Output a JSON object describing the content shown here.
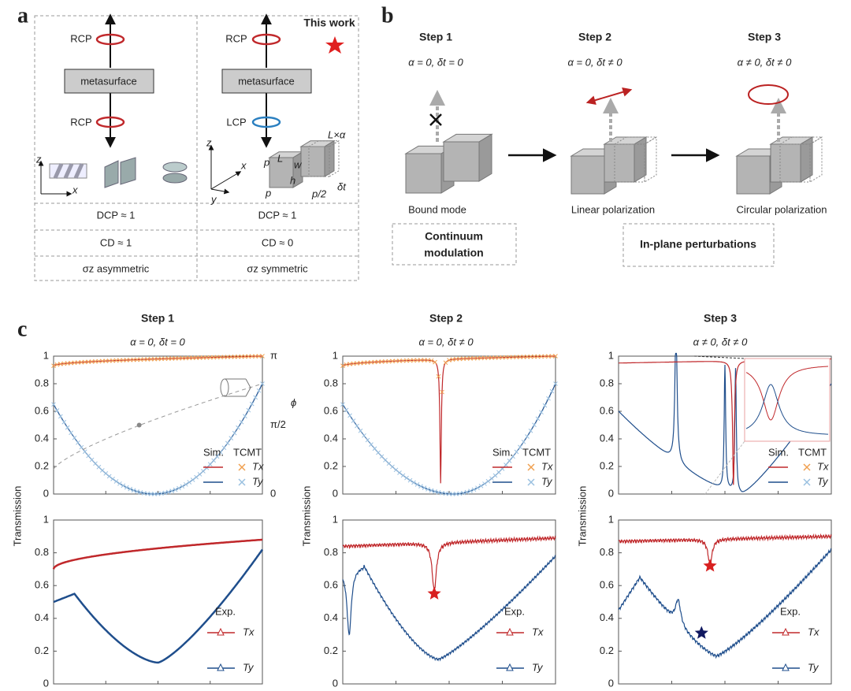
{
  "panel_a": {
    "label": "a",
    "this_work": "This work",
    "left": {
      "top": "RCP",
      "box": "metasurface",
      "bottom": "RCP",
      "axis_z": "z",
      "axis_x": "x",
      "dcp": "DCP ≈ 1",
      "cd": "CD ≈ 1",
      "sym": "σz asymmetric"
    },
    "right": {
      "top": "RCP",
      "box": "metasurface",
      "bottom": "LCP",
      "axis_z": "z",
      "axis_x": "x",
      "axis_y": "y",
      "dims": [
        "p",
        "L",
        "w",
        "h",
        "p",
        "p/2",
        "L×α",
        "δt"
      ],
      "dcp": "DCP ≈ 1",
      "cd": "CD ≈ 0",
      "sym": "σz symmetric"
    }
  },
  "panel_b": {
    "label": "b",
    "steps": [
      {
        "title": "Step 1",
        "condition": "α = 0, δt = 0",
        "caption": "Bound mode"
      },
      {
        "title": "Step 2",
        "condition": "α = 0, δt ≠ 0",
        "caption": "Linear polarization"
      },
      {
        "title": "Step 3",
        "condition": "α ≠ 0, δt ≠ 0",
        "caption": "Circular polarization"
      }
    ],
    "box_left": [
      "Continuum",
      "modulation"
    ],
    "box_right": "In-plane perturbations"
  },
  "panel_c": {
    "label": "c",
    "y_label": "Transmission",
    "top_yticks": [
      0,
      0.2,
      0.4,
      0.6,
      0.8,
      1
    ],
    "bottom_yticks": [
      0,
      0.2,
      0.4,
      0.6,
      0.8,
      1
    ],
    "phase_axis": {
      "ticks": [
        "π",
        "π/2",
        "0"
      ],
      "label": "ϕ"
    },
    "sim_legend": {
      "sim": "Sim.",
      "tcmt": "TCMT",
      "tx": "Tx",
      "ty": "Ty"
    },
    "exp_legend": {
      "exp": "Exp.",
      "tx": "Tx",
      "ty": "Ty"
    },
    "steps": [
      {
        "title": "Step 1",
        "condition": "α = 0, δt = 0"
      },
      {
        "title": "Step 2",
        "condition": "α = 0, δt ≠ 0"
      },
      {
        "title": "Step 3",
        "condition": "α ≠ 0, δt ≠ 0"
      }
    ]
  }
}
